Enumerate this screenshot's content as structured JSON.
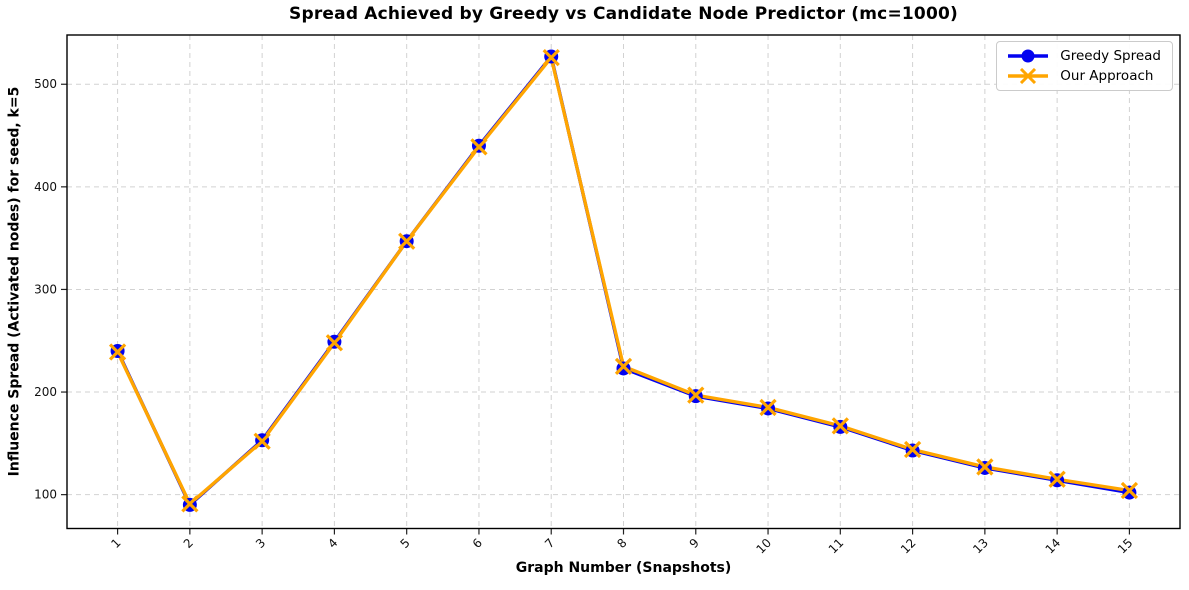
{
  "chart_data": {
    "type": "line",
    "title": "Spread Achieved by Greedy vs Candidate Node Predictor (mc=1000)",
    "xlabel": "Graph Number (Snapshots)",
    "ylabel": "Influence Spread (Activated nodes) for seed, k=5",
    "x": [
      1,
      2,
      3,
      4,
      5,
      6,
      7,
      8,
      9,
      10,
      11,
      12,
      13,
      14,
      15
    ],
    "series": [
      {
        "name": "Greedy Spread",
        "color": "#0202f0",
        "marker": "circle",
        "values": [
          240,
          90,
          153,
          249,
          347,
          440,
          527,
          223,
          196,
          184,
          166,
          143,
          126,
          114,
          102
        ]
      },
      {
        "name": "Our Approach",
        "color": "#ffa500",
        "marker": "x",
        "values": [
          239,
          91,
          152,
          248,
          347,
          439,
          526,
          225,
          197,
          185,
          167,
          144,
          127,
          115,
          104
        ]
      }
    ],
    "yticks": [
      100,
      200,
      300,
      400,
      500
    ],
    "xlim": [
      0.3,
      15.7
    ],
    "ylim": [
      67,
      548
    ],
    "grid": true,
    "grid_style": "dashed",
    "grid_color": "#d2d2d2",
    "spine_color": "#000000",
    "legend_position": "upper right"
  }
}
